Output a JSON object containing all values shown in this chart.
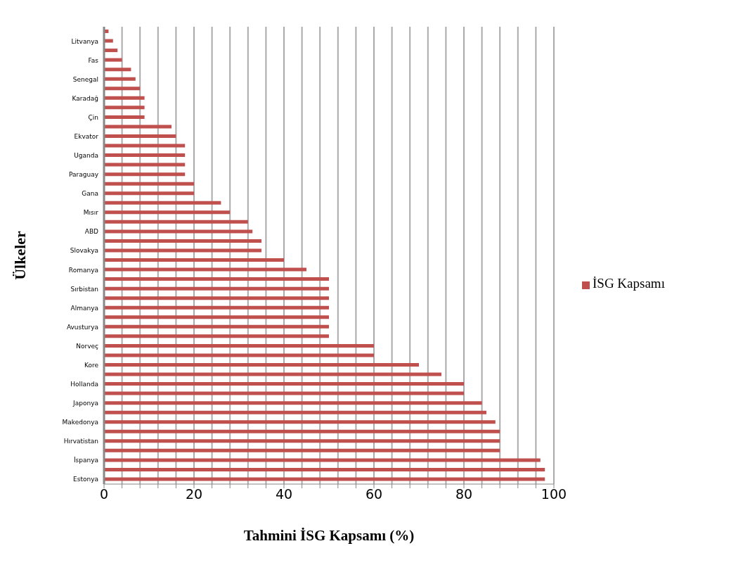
{
  "chart_data": {
    "type": "bar",
    "orientation": "horizontal",
    "xlabel": "Tahmini İSG Kapsamı (%)",
    "ylabel": "Ülkeler",
    "categories": [
      null,
      "Litvanya",
      null,
      "Fas",
      null,
      "Senegal",
      null,
      "Karadağ",
      null,
      "Çin",
      null,
      "Ekvator",
      null,
      "Uganda",
      null,
      "Paraguay",
      null,
      "Gana",
      null,
      "Mısır",
      null,
      "ABD",
      null,
      "Slovakya",
      null,
      "Romanya",
      null,
      "Sırbistan",
      null,
      "Almanya",
      null,
      "Avusturya",
      null,
      "Norveç",
      null,
      "Kore",
      null,
      "Hollanda",
      null,
      "Japonya",
      null,
      "Makedonya",
      null,
      "Hırvatistan",
      null,
      "İspanya",
      null,
      "Estonya"
    ],
    "series": [
      {
        "name": "İSG Kapsamı",
        "color": "#c0504d",
        "values": [
          1,
          2,
          3,
          4,
          6,
          7,
          8,
          9,
          9,
          9,
          15,
          16,
          18,
          18,
          18,
          18,
          20,
          20,
          26,
          28,
          32,
          33,
          35,
          35,
          40,
          45,
          50,
          50,
          50,
          50,
          50,
          50,
          50,
          60,
          60,
          70,
          75,
          80,
          80,
          84,
          85,
          87,
          88,
          88,
          88,
          97,
          98,
          98
        ]
      }
    ],
    "xlim": [
      0,
      100
    ],
    "xticks": [
      0,
      {
        "value": 4,
        "label": null
      },
      {
        "value": 8,
        "label": null
      },
      {
        "value": 12,
        "label": null
      },
      {
        "value": 16,
        "label": null
      },
      20,
      {
        "value": 24,
        "label": null
      },
      {
        "value": 28,
        "label": null
      },
      {
        "value": 32,
        "label": null
      },
      {
        "value": 36,
        "label": null
      },
      40,
      {
        "value": 44,
        "label": null
      },
      {
        "value": 48,
        "label": null
      },
      {
        "value": 52,
        "label": null
      },
      {
        "value": 56,
        "label": null
      },
      60,
      {
        "value": 64,
        "label": null
      },
      {
        "value": 68,
        "label": null
      },
      {
        "value": 72,
        "label": null
      },
      {
        "value": 76,
        "label": null
      },
      80,
      {
        "value": 84,
        "label": null
      },
      {
        "value": 88,
        "label": null
      },
      {
        "value": 92,
        "label": null
      },
      {
        "value": 96,
        "label": null
      },
      100
    ],
    "grid": "x",
    "legend": "right"
  }
}
